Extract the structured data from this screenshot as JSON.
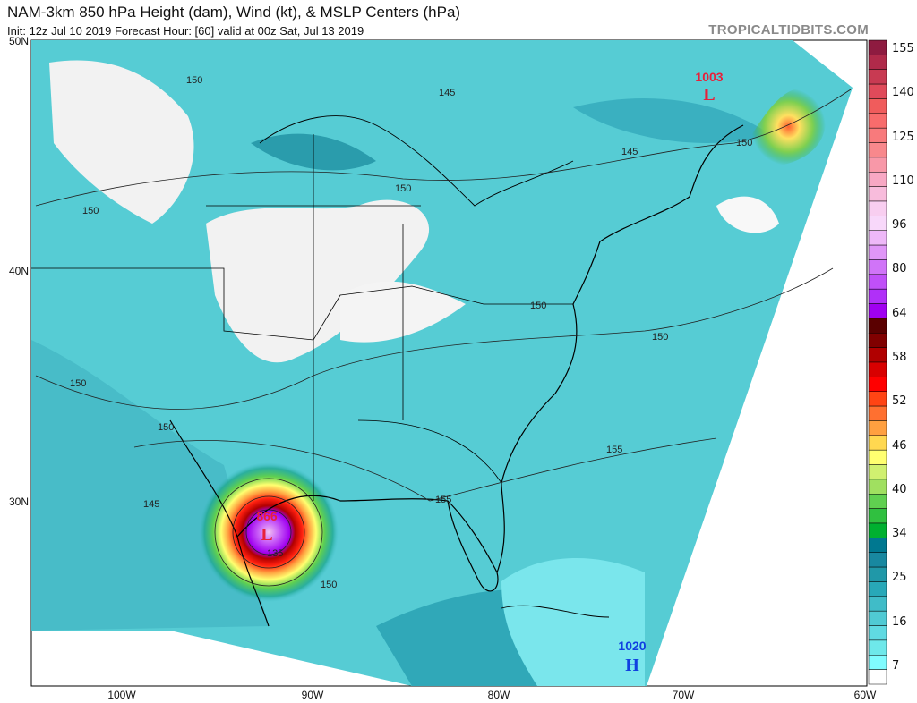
{
  "header": {
    "title": "NAM-3km 850 hPa Height (dam), Wind (kt), & MSLP Centers (hPa)",
    "subtitle": "Init: 12z Jul 10 2019   Forecast Hour: [60]   valid at 00z Sat, Jul 13 2019",
    "brand": "TROPICALTIDBITS.COM"
  },
  "axes": {
    "lat_labels": [
      "50N",
      "40N",
      "30N"
    ],
    "lon_labels": [
      "100W",
      "90W",
      "80W",
      "70W",
      "60W"
    ]
  },
  "contour_labels": [
    "150",
    "145",
    "150",
    "150",
    "150",
    "150",
    "150",
    "150",
    "145",
    "150",
    "155",
    "155",
    "145",
    "135",
    "150"
  ],
  "pressure_centers": [
    {
      "value": "1003",
      "type": "L",
      "color": "#e8203a"
    },
    {
      "value": "866",
      "type": "L",
      "color": "#e8203a"
    },
    {
      "value": "1020",
      "type": "H",
      "color": "#1040e0"
    }
  ],
  "colorbar": {
    "labels": [
      "155",
      "140",
      "125",
      "110",
      "96",
      "80",
      "64",
      "58",
      "52",
      "46",
      "40",
      "34",
      "25",
      "16",
      "7"
    ],
    "colors": [
      "#8e1b40",
      "#b02a4a",
      "#c83a52",
      "#e04a5a",
      "#f05c5c",
      "#f86c6c",
      "#f87a7c",
      "#f8888c",
      "#f898a8",
      "#f8a8c4",
      "#f8bcdc",
      "#f8cef0",
      "#f8d8fa",
      "#eeb8f8",
      "#e096f8",
      "#d074f8",
      "#c050f8",
      "#b030f8",
      "#a000f0",
      "#5a0000",
      "#800000",
      "#b00000",
      "#d80000",
      "#ff0000",
      "#ff4414",
      "#ff7030",
      "#ffa040",
      "#ffd850",
      "#ffff70",
      "#d0f070",
      "#a0e060",
      "#60d050",
      "#30c040",
      "#00b030",
      "#007890",
      "#1888a0",
      "#2098a8",
      "#28a8b8",
      "#40bcc8",
      "#50cad4",
      "#60dae2",
      "#6ee8ea",
      "#80fcff",
      "#ffffff"
    ]
  },
  "colors": {
    "base_wind": "#4fc8d0",
    "calm": "#f4f4f4",
    "hurricane_core": "#a000f0"
  }
}
